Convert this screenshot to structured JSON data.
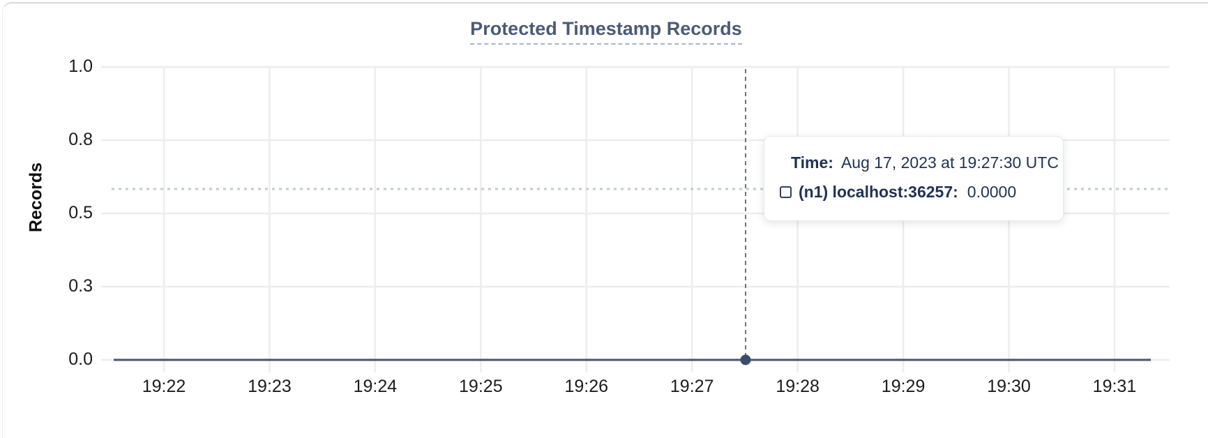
{
  "panel": {
    "title": "Protected Timestamp Records"
  },
  "chart_data": {
    "type": "line",
    "title": "Protected Timestamp Records",
    "xlabel": "",
    "ylabel": "Records",
    "ylim": [
      0.0,
      1.0
    ],
    "grid": true,
    "y_tick_labels": [
      "1.0",
      "0.8",
      "0.5",
      "0.3",
      "0.0"
    ],
    "y_tick_values": [
      1.0,
      0.75,
      0.5,
      0.25,
      0.0
    ],
    "x_tick_labels": [
      "19:22",
      "19:23",
      "19:24",
      "19:25",
      "19:26",
      "19:27",
      "19:28",
      "19:29",
      "19:30",
      "19:31"
    ],
    "series": [
      {
        "name": "(n1) localhost:36257",
        "color": "#44566e",
        "x": [
          "19:22",
          "19:23",
          "19:24",
          "19:25",
          "19:26",
          "19:27",
          "19:28",
          "19:29",
          "19:30",
          "19:31"
        ],
        "values": [
          0,
          0,
          0,
          0,
          0,
          0,
          0,
          0,
          0,
          0
        ]
      }
    ],
    "hovered_point": {
      "x": "19:27:30",
      "y": 0.0
    }
  },
  "tooltip": {
    "time_label": "Time:",
    "time_value": "Aug 17, 2023 at 19:27:30 UTC",
    "series_label": "(n1) localhost:36257:",
    "series_value": "0.0000"
  },
  "colors": {
    "title": "#4b5b76",
    "gridline": "#ededee",
    "series_line": "#44566e",
    "hover_dot": "#3a4c68",
    "crosshair_vertical": "#62758c",
    "crosshair_horizontal": "#c3cad1",
    "tooltip_text": "#1e3252"
  },
  "icons": {
    "legend_checkbox": "unchecked-square"
  }
}
